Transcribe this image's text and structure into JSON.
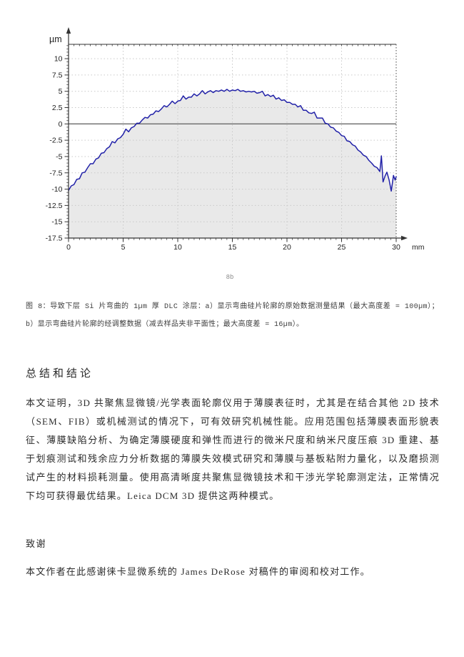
{
  "page": {
    "background": "#ffffff"
  },
  "figure": {
    "sublabel": "8b",
    "caption": "图 8：导致下层 Si 片弯曲的 1µm 厚 DLC 涂层：a）显示弯曲硅片轮廓的原始数据测量结果（最大高度差 = 100µm）；b）显示弯曲硅片轮廓的经调整数据（减去样品夹非平面性；最大高度差 = 16µm）。"
  },
  "sections": {
    "summary": {
      "heading": "总结和结论",
      "body": "本文证明，3D 共聚焦显微镜/光学表面轮廓仪用于薄膜表征时，尤其是在结合其他 2D 技术（SEM、FIB）或机械测试的情况下，可有效研究机械性能。应用范围包括薄膜表面形貌表征、薄膜缺陷分析、为确定薄膜硬度和弹性而进行的微米尺度和纳米尺度压痕 3D 重建、基于划痕测试和残余应力分析数据的薄膜失效模式研究和薄膜与基板粘附力量化，以及磨损测试产生的材料损耗测量。使用高清晰度共聚焦显微镜技术和干涉光学轮廓测定法，正常情况下均可获得最优结果。Leica DCM 3D 提供这两种模式。"
    },
    "acknowledgments": {
      "heading": "致谢",
      "body": "本文作者在此感谢徕卡显微系统的 James DeRose 对稿件的审阅和校对工作。"
    }
  },
  "chart_data": {
    "type": "area",
    "title": "",
    "xlabel": "mm",
    "ylabel": "µm",
    "x_unit": "mm",
    "y_unit": "µm",
    "xlim": [
      0,
      30
    ],
    "ylim": [
      -17.5,
      12.2
    ],
    "x_ticks": [
      0,
      5,
      10,
      15,
      20,
      25,
      30
    ],
    "y_ticks": [
      10,
      7.5,
      5,
      2.5,
      0,
      -2.5,
      -5,
      -7.5,
      -10,
      -12.5,
      -15,
      -17.5
    ],
    "grid": true,
    "zero_line": true,
    "line_color": "#2121a8",
    "fill_color": "#e9e9e9",
    "grid_color": "#c9c9c9",
    "axis_color": "#333333",
    "zero_line_color": "#6a6a6a",
    "points": [
      [
        0,
        -10.2
      ],
      [
        0.25,
        -9.5
      ],
      [
        0.5,
        -9.3
      ],
      [
        0.75,
        -8.5
      ],
      [
        1,
        -8.4
      ],
      [
        1.25,
        -7.5
      ],
      [
        1.5,
        -7.4
      ],
      [
        1.75,
        -6.7
      ],
      [
        2,
        -6.1
      ],
      [
        2.25,
        -6.1
      ],
      [
        2.5,
        -5.4
      ],
      [
        2.75,
        -5.2
      ],
      [
        3,
        -4.5
      ],
      [
        3.25,
        -4.4
      ],
      [
        3.5,
        -3.8
      ],
      [
        3.75,
        -3.5
      ],
      [
        4,
        -2.7
      ],
      [
        4.25,
        -2.9
      ],
      [
        4.5,
        -2.3
      ],
      [
        4.75,
        -2.1
      ],
      [
        5,
        -1.6
      ],
      [
        5.25,
        -0.8
      ],
      [
        5.5,
        -1.2
      ],
      [
        5.75,
        -0.6
      ],
      [
        6,
        -0.4
      ],
      [
        6.25,
        0.1
      ],
      [
        6.5,
        0.1
      ],
      [
        6.75,
        0.6
      ],
      [
        7,
        1
      ],
      [
        7.25,
        0.9
      ],
      [
        7.5,
        1.4
      ],
      [
        7.75,
        1.5
      ],
      [
        8,
        2
      ],
      [
        8.25,
        1.9
      ],
      [
        8.5,
        2.3
      ],
      [
        8.75,
        2.8
      ],
      [
        9,
        2.6
      ],
      [
        9.25,
        3
      ],
      [
        9.5,
        3.5
      ],
      [
        9.75,
        3.1
      ],
      [
        10,
        3.5
      ],
      [
        10.25,
        3.6
      ],
      [
        10.5,
        4.3
      ],
      [
        10.75,
        3.8
      ],
      [
        11,
        4.1
      ],
      [
        11.25,
        4.1
      ],
      [
        11.5,
        4.6
      ],
      [
        11.75,
        4.3
      ],
      [
        12,
        4.6
      ],
      [
        12.25,
        5.1
      ],
      [
        12.5,
        4.6
      ],
      [
        12.75,
        4.9
      ],
      [
        13,
        5.1
      ],
      [
        13.25,
        4.8
      ],
      [
        13.5,
        5.1
      ],
      [
        13.75,
        5
      ],
      [
        14,
        5.2
      ],
      [
        14.25,
        5
      ],
      [
        14.5,
        5.3
      ],
      [
        14.75,
        5
      ],
      [
        15,
        5.2
      ],
      [
        15.25,
        5.1
      ],
      [
        15.5,
        5.3
      ],
      [
        15.75,
        5
      ],
      [
        16,
        5.1
      ],
      [
        16.25,
        4.9
      ],
      [
        16.5,
        5
      ],
      [
        16.75,
        4.9
      ],
      [
        17,
        5
      ],
      [
        17.25,
        4.7
      ],
      [
        17.5,
        4.8
      ],
      [
        17.75,
        5
      ],
      [
        18,
        4.3
      ],
      [
        18.25,
        4.5
      ],
      [
        18.5,
        4.2
      ],
      [
        18.75,
        4.4
      ],
      [
        19,
        3.8
      ],
      [
        19.25,
        4
      ],
      [
        19.5,
        3.6
      ],
      [
        19.75,
        3.7
      ],
      [
        20,
        3.3
      ],
      [
        20.25,
        3.3
      ],
      [
        20.5,
        3
      ],
      [
        20.75,
        3
      ],
      [
        21,
        2.6
      ],
      [
        21.25,
        2.8
      ],
      [
        21.5,
        2.1
      ],
      [
        21.75,
        2.1
      ],
      [
        22,
        1.7
      ],
      [
        22.25,
        1.6
      ],
      [
        22.5,
        1.8
      ],
      [
        22.75,
        0.9
      ],
      [
        23,
        0.9
      ],
      [
        23.25,
        0.9
      ],
      [
        23.5,
        0.1
      ],
      [
        23.75,
        0
      ],
      [
        24,
        -0.5
      ],
      [
        24.25,
        -0.6
      ],
      [
        24.5,
        -1.1
      ],
      [
        24.75,
        -1.3
      ],
      [
        25,
        -1.8
      ],
      [
        25.25,
        -1.9
      ],
      [
        25.5,
        -2.6
      ],
      [
        25.75,
        -2.7
      ],
      [
        26,
        -3.2
      ],
      [
        26.25,
        -3.4
      ],
      [
        26.5,
        -4
      ],
      [
        26.75,
        -4.3
      ],
      [
        27,
        -4.8
      ],
      [
        27.25,
        -5
      ],
      [
        27.5,
        -5.6
      ],
      [
        27.75,
        -6
      ],
      [
        28,
        -6.5
      ],
      [
        28.25,
        -6.7
      ],
      [
        28.5,
        -7.3
      ],
      [
        28.65,
        -4.9
      ],
      [
        28.8,
        -8.9
      ],
      [
        29,
        -7.9
      ],
      [
        29.15,
        -7.4
      ],
      [
        29.35,
        -8.6
      ],
      [
        29.55,
        -10.3
      ],
      [
        29.75,
        -7.9
      ],
      [
        29.9,
        -8.6
      ],
      [
        30,
        -8.1
      ]
    ]
  }
}
